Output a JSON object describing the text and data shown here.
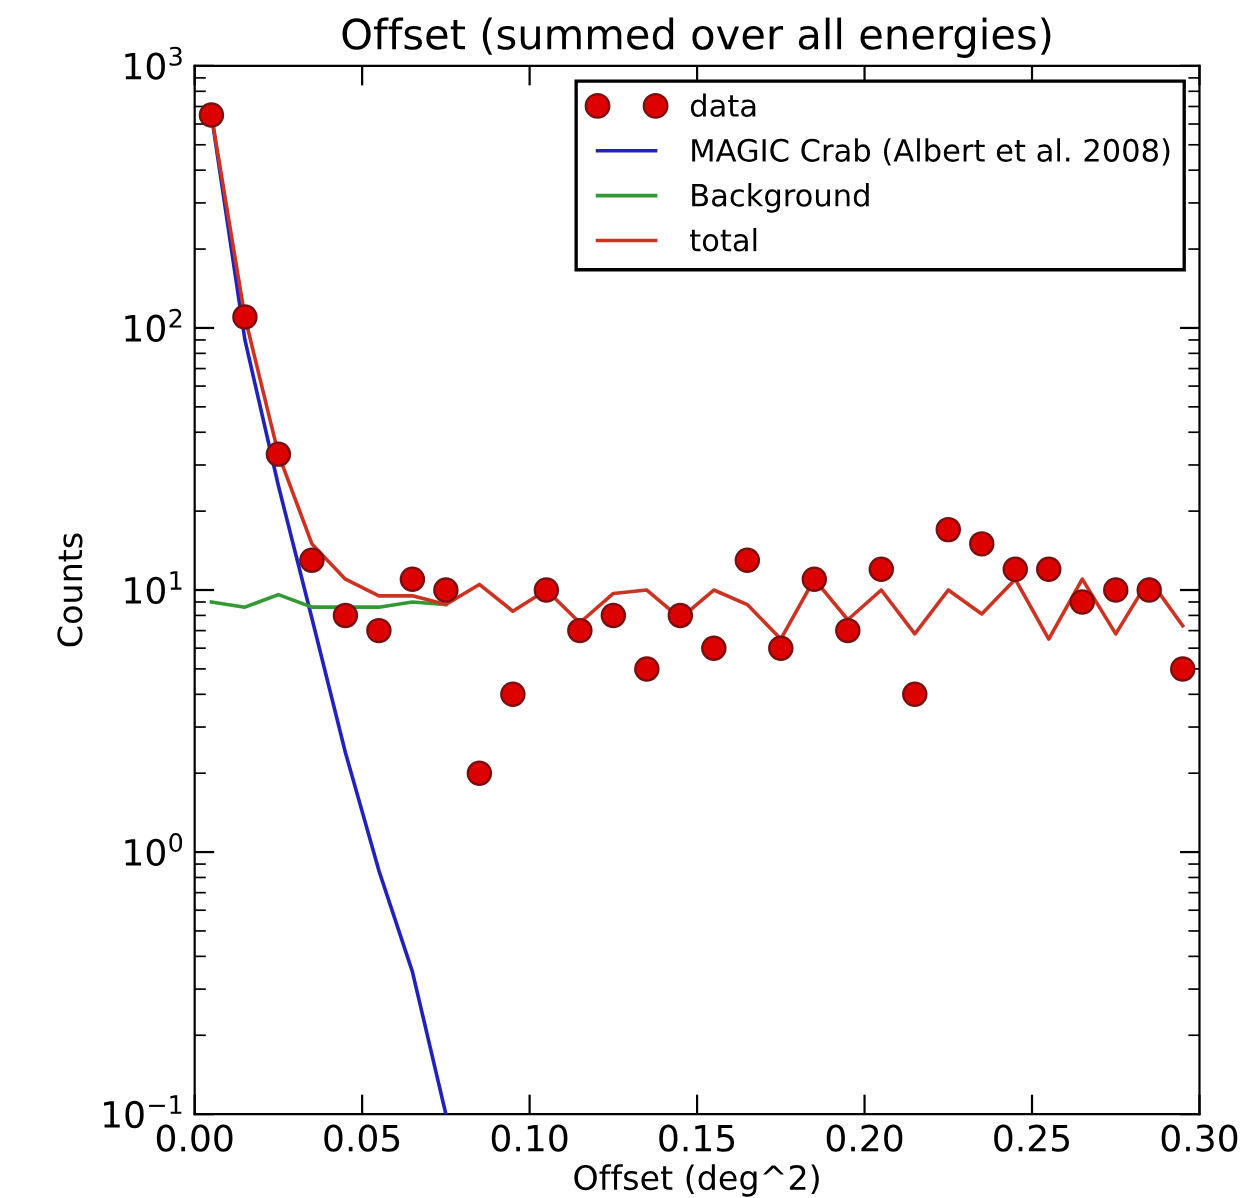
{
  "chart_data": {
    "type": "line",
    "title": "Offset (summed over all energies)",
    "xlabel": "Offset (deg^2)",
    "ylabel": "Counts",
    "log": "y",
    "grid": false,
    "legend": "top right",
    "xlim": [
      0.0,
      0.3
    ],
    "xticks": [
      {
        "value": 0.0,
        "label": "0.00"
      },
      {
        "value": 0.05,
        "label": "0.05"
      },
      {
        "value": 0.1,
        "label": "0.10"
      },
      {
        "value": 0.15,
        "label": "0.15"
      },
      {
        "value": 0.2,
        "label": "0.20"
      },
      {
        "value": 0.25,
        "label": "0.25"
      },
      {
        "value": 0.3,
        "label": "0.30"
      }
    ],
    "ylim": [
      0.1,
      1000
    ],
    "yticks": [
      {
        "value": 0.1,
        "label": "10$^{−1}$"
      },
      {
        "value": 1,
        "label": "10$^{0}$"
      },
      {
        "value": 10,
        "label": "10$^{1}$"
      },
      {
        "value": 100,
        "label": "10$^{2}$"
      },
      {
        "value": 1000,
        "label": "10$^{3}$"
      }
    ],
    "series": [
      {
        "name": "data",
        "type": "scatter",
        "marker": "circle",
        "color": "#dd0000",
        "x": [
          0.005,
          0.015,
          0.025,
          0.035,
          0.045,
          0.055,
          0.065,
          0.075,
          0.085,
          0.095,
          0.105,
          0.115,
          0.125,
          0.135,
          0.145,
          0.155,
          0.165,
          0.175,
          0.185,
          0.195,
          0.205,
          0.215,
          0.225,
          0.235,
          0.245,
          0.255,
          0.265,
          0.275,
          0.285,
          0.295
        ],
        "values": [
          650,
          110,
          33,
          13,
          8,
          7,
          11,
          10,
          2,
          4,
          10,
          7,
          8,
          5,
          8,
          6,
          13,
          6,
          11,
          7,
          12,
          4,
          17,
          15,
          12,
          12,
          9,
          10,
          10,
          5
        ]
      },
      {
        "name": "MAGIC Crab (Albert et al. 2008)",
        "color": "#2222bb",
        "x": [
          0.005,
          0.015,
          0.025,
          0.035,
          0.045,
          0.055,
          0.065,
          0.075
        ],
        "values": [
          650,
          90,
          25,
          7.8,
          2.4,
          0.85,
          0.35,
          0.1
        ]
      },
      {
        "name": "Background",
        "color": "#339933",
        "x": [
          0.005,
          0.015,
          0.025,
          0.035,
          0.045,
          0.055,
          0.065,
          0.075
        ],
        "values": [
          9,
          8.6,
          9.6,
          8.6,
          8.6,
          8.6,
          9,
          8.8
        ]
      },
      {
        "name": "total",
        "color": "#cc3322",
        "x": [
          0.005,
          0.015,
          0.025,
          0.035,
          0.045,
          0.055,
          0.065,
          0.075,
          0.085,
          0.095,
          0.105,
          0.115,
          0.125,
          0.135,
          0.145,
          0.155,
          0.165,
          0.175,
          0.185,
          0.195,
          0.205,
          0.215,
          0.225,
          0.235,
          0.245,
          0.255,
          0.265,
          0.275,
          0.285,
          0.295
        ],
        "values": [
          650,
          110,
          33,
          15,
          11,
          9.5,
          9.5,
          8.8,
          10.5,
          8.3,
          10,
          7.5,
          9.7,
          10,
          7.8,
          10,
          8.8,
          6.5,
          11,
          7.7,
          10,
          6.8,
          10,
          8.1,
          11,
          6.5,
          11,
          6.8,
          11,
          7.3
        ]
      }
    ]
  }
}
